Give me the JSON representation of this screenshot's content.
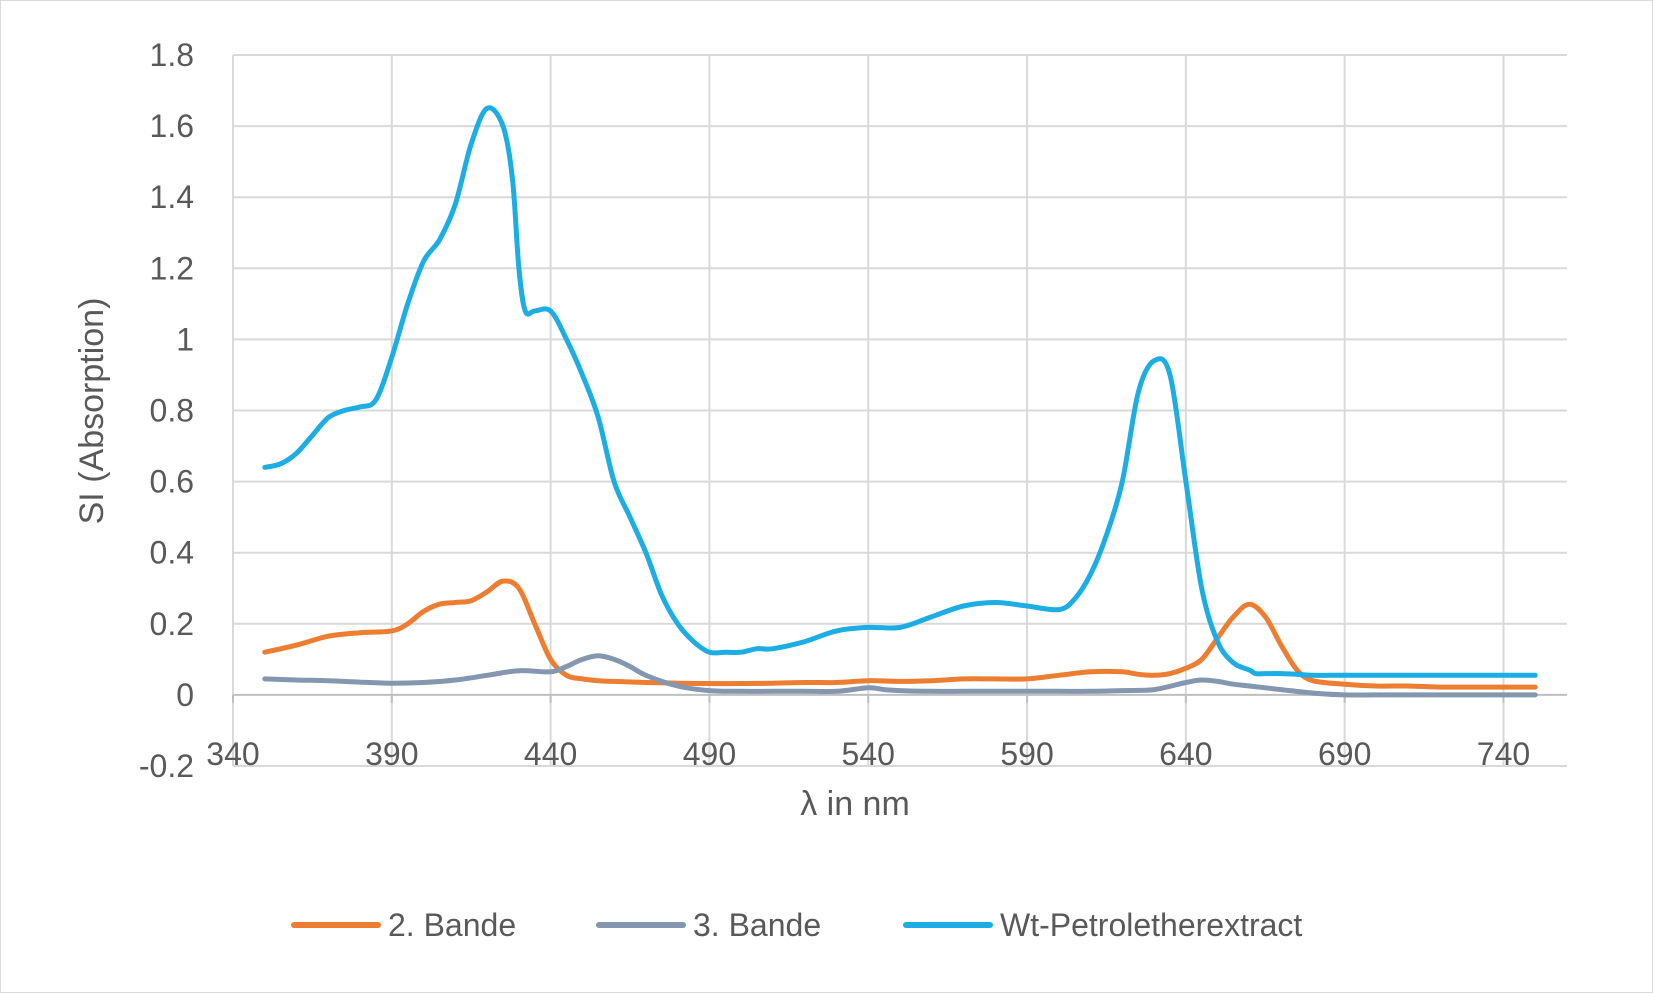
{
  "chart_data": {
    "type": "line",
    "title": "",
    "xlabel": "λ in nm",
    "ylabel": "SI (Absorption)",
    "xlim": [
      340,
      760
    ],
    "ylim": [
      -0.2,
      1.8
    ],
    "x_ticks": [
      "340",
      "390",
      "440",
      "490",
      "540",
      "590",
      "640",
      "690",
      "740"
    ],
    "y_ticks": [
      "-0.2",
      "0",
      "0.2",
      "0.4",
      "0.6",
      "0.8",
      "1",
      "1.2",
      "1.4",
      "1.6",
      "1.8"
    ],
    "grid": true,
    "legend_position": "bottom",
    "series": [
      {
        "name": "2. Bande",
        "color": "#ED7D31",
        "x": [
          350,
          360,
          370,
          380,
          390,
          395,
          400,
          405,
          410,
          415,
          420,
          425,
          430,
          435,
          440,
          445,
          450,
          455,
          460,
          470,
          480,
          490,
          500,
          510,
          520,
          530,
          540,
          550,
          560,
          570,
          580,
          590,
          600,
          610,
          620,
          625,
          630,
          635,
          640,
          645,
          650,
          655,
          660,
          665,
          670,
          675,
          680,
          690,
          700,
          710,
          720,
          730,
          740,
          750
        ],
        "y": [
          0.12,
          0.14,
          0.165,
          0.175,
          0.18,
          0.2,
          0.235,
          0.255,
          0.26,
          0.265,
          0.29,
          0.32,
          0.3,
          0.2,
          0.1,
          0.055,
          0.045,
          0.04,
          0.038,
          0.035,
          0.033,
          0.032,
          0.032,
          0.033,
          0.035,
          0.035,
          0.04,
          0.038,
          0.04,
          0.045,
          0.045,
          0.045,
          0.055,
          0.065,
          0.065,
          0.058,
          0.055,
          0.06,
          0.075,
          0.1,
          0.16,
          0.22,
          0.255,
          0.22,
          0.14,
          0.07,
          0.04,
          0.03,
          0.025,
          0.025,
          0.022,
          0.022,
          0.022,
          0.022
        ]
      },
      {
        "name": "3. Bande",
        "color": "#8497B0",
        "x": [
          350,
          360,
          370,
          380,
          390,
          400,
          410,
          420,
          430,
          440,
          445,
          450,
          455,
          460,
          465,
          470,
          480,
          490,
          500,
          510,
          520,
          530,
          540,
          545,
          550,
          560,
          570,
          580,
          590,
          600,
          610,
          620,
          630,
          640,
          645,
          650,
          655,
          660,
          670,
          680,
          690,
          700,
          710,
          720,
          730,
          740,
          750
        ],
        "y": [
          0.045,
          0.042,
          0.04,
          0.036,
          0.033,
          0.035,
          0.042,
          0.055,
          0.068,
          0.065,
          0.08,
          0.1,
          0.11,
          0.1,
          0.08,
          0.055,
          0.025,
          0.012,
          0.01,
          0.01,
          0.01,
          0.01,
          0.02,
          0.015,
          0.012,
          0.01,
          0.01,
          0.01,
          0.01,
          0.01,
          0.01,
          0.012,
          0.015,
          0.035,
          0.042,
          0.038,
          0.03,
          0.025,
          0.015,
          0.005,
          0.0,
          0.0,
          0.0,
          0.0,
          0.0,
          0.0,
          0.0
        ]
      },
      {
        "name": "Wt-Petroletherextract",
        "color": "#1CADE4",
        "x": [
          350,
          355,
          360,
          365,
          370,
          375,
          380,
          385,
          390,
          395,
          400,
          405,
          410,
          415,
          420,
          425,
          428,
          430,
          432,
          435,
          440,
          445,
          450,
          455,
          460,
          465,
          470,
          475,
          480,
          485,
          490,
          495,
          500,
          505,
          510,
          520,
          530,
          540,
          550,
          560,
          570,
          580,
          590,
          600,
          605,
          610,
          615,
          620,
          625,
          630,
          635,
          640,
          645,
          650,
          655,
          660,
          662,
          665,
          670,
          675,
          680,
          685,
          690,
          700,
          720,
          740,
          750
        ],
        "y": [
          0.64,
          0.65,
          0.68,
          0.73,
          0.78,
          0.8,
          0.81,
          0.83,
          0.95,
          1.1,
          1.22,
          1.28,
          1.38,
          1.55,
          1.65,
          1.6,
          1.45,
          1.2,
          1.08,
          1.08,
          1.08,
          1.0,
          0.9,
          0.78,
          0.6,
          0.5,
          0.4,
          0.28,
          0.2,
          0.15,
          0.12,
          0.12,
          0.12,
          0.13,
          0.13,
          0.15,
          0.18,
          0.19,
          0.19,
          0.22,
          0.25,
          0.26,
          0.25,
          0.24,
          0.27,
          0.34,
          0.45,
          0.6,
          0.85,
          0.94,
          0.9,
          0.6,
          0.3,
          0.15,
          0.09,
          0.07,
          0.06,
          0.06,
          0.06,
          0.058,
          0.055,
          0.055,
          0.055,
          0.055,
          0.055,
          0.055,
          0.055
        ]
      }
    ]
  }
}
